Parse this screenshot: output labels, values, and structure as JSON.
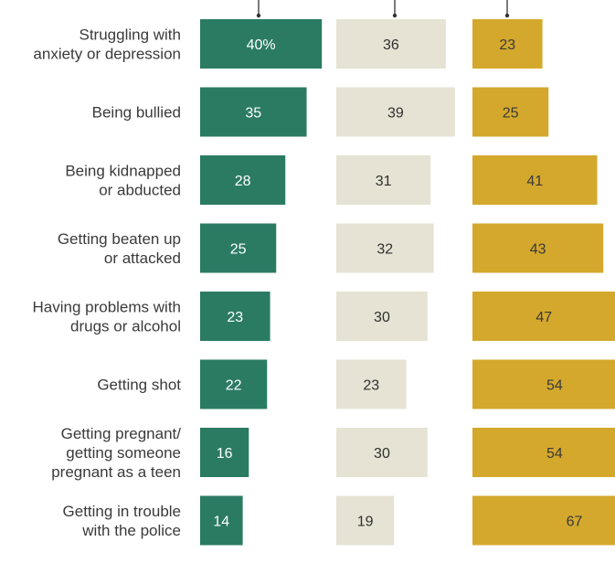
{
  "chart_data": {
    "type": "bar",
    "orientation": "horizontal",
    "layout": "three side-by-side columns of bars",
    "categories": [
      [
        "Struggling with",
        "anxiety or depression"
      ],
      [
        "Being bullied"
      ],
      [
        "Being kidnapped",
        "or abducted"
      ],
      [
        "Getting beaten up",
        "or attacked"
      ],
      [
        "Having problems with",
        "drugs or alcohol"
      ],
      [
        "Getting shot"
      ],
      [
        "Getting pregnant/",
        "getting someone",
        "pregnant as a teen"
      ],
      [
        "Getting in trouble",
        "with the police"
      ]
    ],
    "series": [
      {
        "values": [
          40,
          35,
          28,
          25,
          23,
          22,
          16,
          14
        ],
        "color": "#2b7b63",
        "label_color": "#ffffff",
        "value_suffix_first": "%"
      },
      {
        "values": [
          36,
          39,
          31,
          32,
          30,
          23,
          30,
          19
        ],
        "color": "#e6e3d4",
        "label_color": "#2f2f2f"
      },
      {
        "values": [
          23,
          25,
          41,
          43,
          47,
          54,
          54,
          67
        ],
        "color": "#d4a82c",
        "label_color": "#3a3a3a"
      }
    ],
    "xlim": [
      0,
      70
    ],
    "grid": false,
    "legend": "none"
  }
}
